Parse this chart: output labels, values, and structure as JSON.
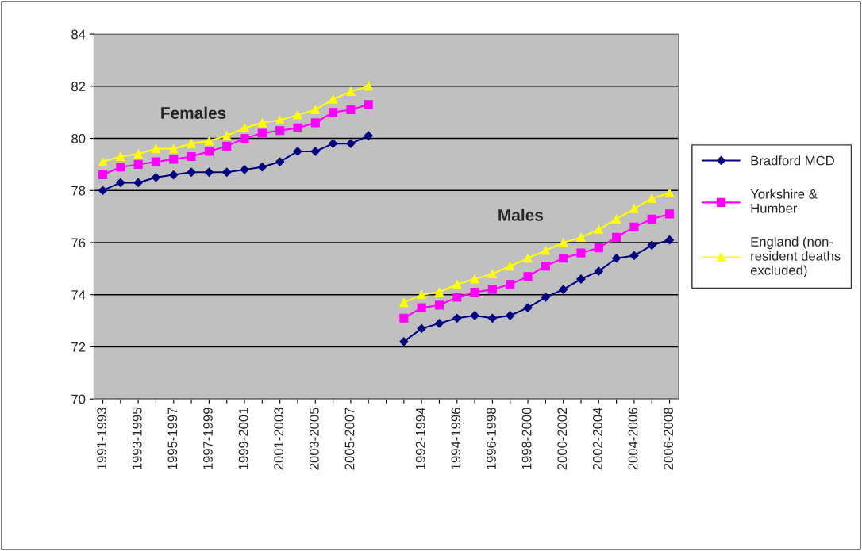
{
  "chart_data": {
    "type": "line",
    "categories": [
      "1991-1993",
      null,
      "1993-1995",
      null,
      "1995-1997",
      null,
      "1997-1999",
      null,
      "1999-2001",
      null,
      "2001-2003",
      null,
      "2003-2005",
      null,
      "2005-2007",
      null,
      null,
      null,
      "1992-1994",
      null,
      "1994-1996",
      null,
      "1996-1998",
      null,
      "1998-2000",
      null,
      "2000-2002",
      null,
      "2002-2004",
      null,
      "2004-2006",
      null,
      "2006-2008"
    ],
    "series": [
      {
        "name": "Bradford MCD",
        "color": "#000080",
        "marker": "diamond",
        "values": [
          78.0,
          78.3,
          78.3,
          78.5,
          78.6,
          78.7,
          78.7,
          78.7,
          78.8,
          78.9,
          79.1,
          79.5,
          79.5,
          79.8,
          79.8,
          80.1,
          null,
          72.2,
          72.7,
          72.9,
          73.1,
          73.2,
          73.1,
          73.2,
          73.5,
          73.9,
          74.2,
          74.6,
          74.9,
          75.4,
          75.5,
          75.9,
          76.1
        ]
      },
      {
        "name": "Yorkshire &\nHumber",
        "color": "#ff00ff",
        "marker": "square",
        "values": [
          78.6,
          78.9,
          79.0,
          79.1,
          79.2,
          79.3,
          79.5,
          79.7,
          80.0,
          80.2,
          80.3,
          80.4,
          80.6,
          81.0,
          81.1,
          81.3,
          null,
          73.1,
          73.5,
          73.6,
          73.9,
          74.1,
          74.2,
          74.4,
          74.7,
          75.1,
          75.4,
          75.6,
          75.8,
          76.2,
          76.6,
          76.9,
          77.1
        ]
      },
      {
        "name": "England (non-\nresident deaths\nexcluded)",
        "color": "#ffff00",
        "marker": "triangle",
        "values": [
          79.1,
          79.3,
          79.4,
          79.6,
          79.6,
          79.8,
          79.9,
          80.1,
          80.4,
          80.6,
          80.7,
          80.9,
          81.1,
          81.5,
          81.8,
          82.0,
          null,
          73.7,
          74.0,
          74.1,
          74.4,
          74.6,
          74.8,
          75.1,
          75.4,
          75.7,
          76.0,
          76.2,
          76.5,
          76.9,
          77.3,
          77.7,
          77.9
        ]
      }
    ],
    "annotations": [
      "Females",
      "Males"
    ],
    "ylim": [
      70,
      84
    ],
    "yticks": [
      70,
      72,
      74,
      76,
      78,
      80,
      82,
      84
    ],
    "grid": "y",
    "legend": "right",
    "line_style": "solid"
  }
}
